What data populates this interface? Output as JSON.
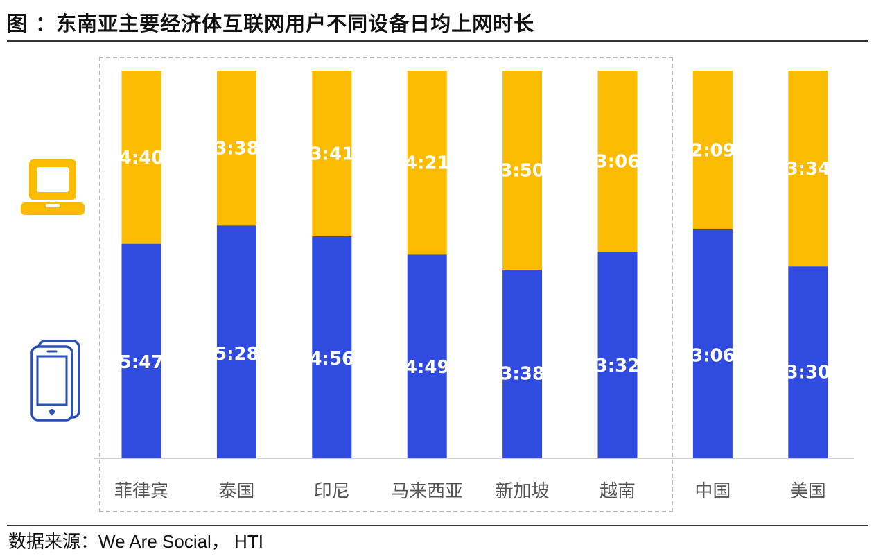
{
  "title": "图    ：东南亚主要经济体互联网用户不同设备日均上网时长",
  "source_label": "数据来源：",
  "source_text": "We Are Social， HTI",
  "colors": {
    "computer": "#FBBB00",
    "mobile": "#2F4BE0",
    "icon_mobile_outline": "#2B4FB4"
  },
  "icons": {
    "computer": "laptop-icon",
    "mobile": "smartphone-icon"
  },
  "chart_data": {
    "type": "bar",
    "stacked": true,
    "normalized_to_100_percent": true,
    "categories": [
      "菲律宾",
      "泰国",
      "印尼",
      "马来西亚",
      "新加坡",
      "越南",
      "中国",
      "美国"
    ],
    "series": [
      {
        "device": "mobile",
        "values": [
          "5:47",
          "5:28",
          "4:56",
          "4:49",
          "3:38",
          "3:32",
          "3:06",
          "3:30"
        ]
      },
      {
        "device": "computer",
        "values": [
          "4:40",
          "3:38",
          "3:41",
          "4:21",
          "3:50",
          "3:06",
          "2:09",
          "3:34"
        ]
      }
    ],
    "grouped_categories": [
      "菲律宾",
      "泰国",
      "印尼",
      "马来西亚",
      "新加坡",
      "越南"
    ],
    "grid": false,
    "legend": "left (device icons)"
  }
}
